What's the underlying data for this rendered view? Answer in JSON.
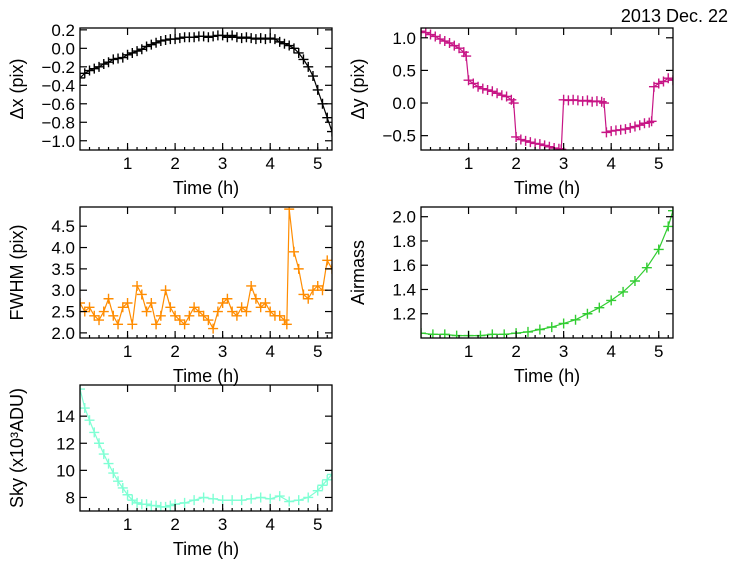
{
  "figure": {
    "date_label": "2013 Dec. 22"
  },
  "colors": {
    "dx": "#000000",
    "dy": "#c71585",
    "fwhm": "#ff8c00",
    "airmass": "#32cd32",
    "sky": "#7fffd4"
  },
  "chart_data": [
    {
      "id": "dx",
      "type": "scatter",
      "marker": "plus",
      "connected": true,
      "xlabel": "Time (h)",
      "ylabel": "Δx (pix)",
      "xlim": [
        0,
        5.3
      ],
      "ylim": [
        -1.1,
        0.22
      ],
      "xticks": [
        1,
        2,
        3,
        4,
        5
      ],
      "xticklabels": [
        "1",
        "2",
        "3",
        "4",
        "5"
      ],
      "yticks": [
        -1.0,
        -0.8,
        -0.6,
        -0.4,
        -0.2,
        0.0,
        0.2
      ],
      "yticklabels": [
        "−1.0",
        "−0.8",
        "−0.6",
        "−0.4",
        "−0.2",
        "0.0",
        "0.2"
      ],
      "x": [
        0.0,
        0.1,
        0.2,
        0.3,
        0.4,
        0.5,
        0.6,
        0.7,
        0.8,
        0.9,
        1.0,
        1.1,
        1.2,
        1.3,
        1.4,
        1.5,
        1.6,
        1.7,
        1.8,
        1.9,
        2.0,
        2.1,
        2.2,
        2.3,
        2.4,
        2.5,
        2.6,
        2.7,
        2.8,
        2.9,
        3.0,
        3.1,
        3.2,
        3.3,
        3.4,
        3.5,
        3.6,
        3.7,
        3.8,
        3.9,
        4.0,
        4.1,
        4.2,
        4.3,
        4.4,
        4.5,
        4.6,
        4.7,
        4.8,
        4.9,
        5.0,
        5.1,
        5.2,
        5.3
      ],
      "y": [
        -0.32,
        -0.27,
        -0.24,
        -0.22,
        -0.2,
        -0.17,
        -0.15,
        -0.12,
        -0.11,
        -0.1,
        -0.07,
        -0.05,
        -0.03,
        -0.01,
        0.02,
        0.04,
        0.06,
        0.08,
        0.09,
        0.1,
        0.1,
        0.11,
        0.12,
        0.12,
        0.12,
        0.13,
        0.13,
        0.12,
        0.13,
        0.14,
        0.14,
        0.12,
        0.14,
        0.12,
        0.11,
        0.12,
        0.11,
        0.1,
        0.11,
        0.1,
        0.11,
        0.1,
        0.07,
        0.05,
        0.03,
        0.0,
        -0.05,
        -0.12,
        -0.2,
        -0.3,
        -0.45,
        -0.6,
        -0.75,
        -0.9
      ]
    },
    {
      "id": "dy",
      "type": "scatter",
      "marker": "plus",
      "connected": true,
      "xlabel": "Time (h)",
      "ylabel": "Δy (pix)",
      "xlim": [
        0,
        5.3
      ],
      "ylim": [
        -0.72,
        1.15
      ],
      "xticks": [
        1,
        2,
        3,
        4,
        5
      ],
      "xticklabels": [
        "1",
        "2",
        "3",
        "4",
        "5"
      ],
      "yticks": [
        -0.5,
        0.0,
        0.5,
        1.0
      ],
      "yticklabels": [
        "−0.5",
        "0.0",
        "0.5",
        "1.0"
      ],
      "x": [
        0.0,
        0.1,
        0.2,
        0.3,
        0.4,
        0.5,
        0.6,
        0.7,
        0.8,
        0.9,
        0.95,
        1.0,
        1.1,
        1.2,
        1.3,
        1.4,
        1.5,
        1.6,
        1.7,
        1.8,
        1.9,
        1.95,
        2.0,
        2.1,
        2.2,
        2.3,
        2.4,
        2.5,
        2.6,
        2.7,
        2.8,
        2.9,
        2.95,
        3.0,
        3.1,
        3.2,
        3.3,
        3.4,
        3.5,
        3.6,
        3.7,
        3.8,
        3.85,
        3.9,
        4.0,
        4.1,
        4.2,
        4.3,
        4.4,
        4.5,
        4.6,
        4.7,
        4.8,
        4.85,
        4.9,
        5.0,
        5.1,
        5.2,
        5.3
      ],
      "y": [
        1.1,
        1.08,
        1.05,
        1.02,
        0.98,
        0.95,
        0.92,
        0.88,
        0.84,
        0.78,
        0.72,
        0.35,
        0.3,
        0.25,
        0.22,
        0.2,
        0.18,
        0.15,
        0.12,
        0.1,
        0.05,
        0.0,
        -0.52,
        -0.56,
        -0.58,
        -0.6,
        -0.62,
        -0.63,
        -0.65,
        -0.67,
        -0.69,
        -0.7,
        -0.71,
        0.05,
        0.04,
        0.05,
        0.04,
        0.03,
        0.04,
        0.02,
        0.03,
        0.02,
        0.0,
        -0.45,
        -0.43,
        -0.42,
        -0.41,
        -0.4,
        -0.38,
        -0.36,
        -0.34,
        -0.31,
        -0.3,
        -0.28,
        0.25,
        0.3,
        0.33,
        0.38,
        0.35
      ]
    },
    {
      "id": "fwhm",
      "type": "scatter",
      "marker": "plus",
      "connected": true,
      "xlabel": "Time (h)",
      "ylabel": "FWHM (pix)",
      "xlim": [
        0,
        5.3
      ],
      "ylim": [
        1.88,
        4.95
      ],
      "xticks": [
        1,
        2,
        3,
        4,
        5
      ],
      "xticklabels": [
        "1",
        "2",
        "3",
        "4",
        "5"
      ],
      "yticks": [
        2.0,
        2.5,
        3.0,
        3.5,
        4.0,
        4.5
      ],
      "yticklabels": [
        "2.0",
        "2.5",
        "3.0",
        "3.5",
        "4.0",
        "4.5"
      ],
      "x": [
        0.0,
        0.1,
        0.2,
        0.3,
        0.4,
        0.5,
        0.6,
        0.7,
        0.8,
        0.9,
        1.0,
        1.1,
        1.2,
        1.3,
        1.4,
        1.5,
        1.6,
        1.7,
        1.8,
        1.9,
        2.0,
        2.1,
        2.2,
        2.3,
        2.4,
        2.5,
        2.6,
        2.7,
        2.8,
        2.9,
        3.0,
        3.1,
        3.2,
        3.3,
        3.4,
        3.5,
        3.6,
        3.7,
        3.8,
        3.9,
        4.0,
        4.1,
        4.2,
        4.3,
        4.35,
        4.4,
        4.5,
        4.6,
        4.7,
        4.8,
        4.9,
        5.0,
        5.1,
        5.2,
        5.3
      ],
      "y": [
        2.7,
        2.5,
        2.6,
        2.4,
        2.3,
        2.5,
        2.8,
        2.4,
        2.2,
        2.6,
        2.7,
        2.2,
        3.1,
        2.9,
        2.5,
        2.7,
        2.2,
        2.4,
        3.0,
        2.6,
        2.4,
        2.3,
        2.2,
        2.4,
        2.6,
        2.5,
        2.4,
        2.3,
        2.1,
        2.5,
        2.7,
        2.8,
        2.5,
        2.4,
        2.6,
        2.5,
        3.1,
        2.8,
        2.6,
        2.7,
        2.5,
        2.4,
        2.4,
        2.3,
        2.2,
        4.9,
        3.9,
        3.5,
        2.9,
        2.8,
        3.0,
        3.1,
        3.0,
        3.7,
        3.5
      ]
    },
    {
      "id": "airmass",
      "type": "scatter",
      "marker": "plus",
      "connected": true,
      "xlabel": "Time (h)",
      "ylabel": "Airmass",
      "xlim": [
        0,
        5.3
      ],
      "ylim": [
        1.0,
        2.08
      ],
      "xticks": [
        1,
        2,
        3,
        4,
        5
      ],
      "xticklabels": [
        "1",
        "2",
        "3",
        "4",
        "5"
      ],
      "yticks": [
        1.2,
        1.4,
        1.6,
        1.8,
        2.0
      ],
      "yticklabels": [
        "1.2",
        "1.4",
        "1.6",
        "1.8",
        "2.0"
      ],
      "x": [
        0.0,
        0.25,
        0.5,
        0.75,
        1.0,
        1.25,
        1.5,
        1.75,
        2.0,
        2.25,
        2.5,
        2.75,
        3.0,
        3.25,
        3.5,
        3.75,
        4.0,
        4.25,
        4.5,
        4.75,
        5.0,
        5.2,
        5.3
      ],
      "y": [
        1.04,
        1.03,
        1.03,
        1.02,
        1.02,
        1.02,
        1.03,
        1.03,
        1.04,
        1.05,
        1.07,
        1.09,
        1.12,
        1.15,
        1.2,
        1.25,
        1.31,
        1.38,
        1.47,
        1.58,
        1.73,
        1.92,
        2.05
      ]
    },
    {
      "id": "sky",
      "type": "scatter",
      "marker": "plus",
      "connected": true,
      "xlabel": "Time (h)",
      "ylabel": "Sky (x10³ADU)",
      "xlim": [
        0,
        5.3
      ],
      "ylim": [
        7.0,
        16.3
      ],
      "xticks": [
        1,
        2,
        3,
        4,
        5
      ],
      "xticklabels": [
        "1",
        "2",
        "3",
        "4",
        "5"
      ],
      "yticks": [
        8,
        10,
        12,
        14
      ],
      "yticklabels": [
        "8",
        "10",
        "12",
        "14"
      ],
      "x": [
        0.0,
        0.1,
        0.2,
        0.3,
        0.4,
        0.5,
        0.6,
        0.7,
        0.8,
        0.9,
        1.0,
        1.1,
        1.2,
        1.3,
        1.4,
        1.5,
        1.6,
        1.7,
        1.8,
        1.9,
        2.0,
        2.2,
        2.4,
        2.6,
        2.8,
        3.0,
        3.2,
        3.4,
        3.6,
        3.8,
        4.0,
        4.2,
        4.4,
        4.6,
        4.8,
        5.0,
        5.1,
        5.2,
        5.3
      ],
      "y": [
        16.0,
        14.6,
        13.7,
        12.8,
        12.0,
        11.2,
        10.5,
        9.8,
        9.2,
        8.7,
        8.2,
        7.8,
        7.6,
        7.5,
        7.5,
        7.4,
        7.4,
        7.3,
        7.3,
        7.4,
        7.5,
        7.6,
        7.8,
        8.0,
        7.9,
        7.8,
        7.8,
        7.8,
        7.9,
        8.0,
        7.9,
        8.1,
        7.7,
        7.8,
        8.0,
        8.5,
        8.9,
        9.3,
        9.7
      ]
    }
  ]
}
